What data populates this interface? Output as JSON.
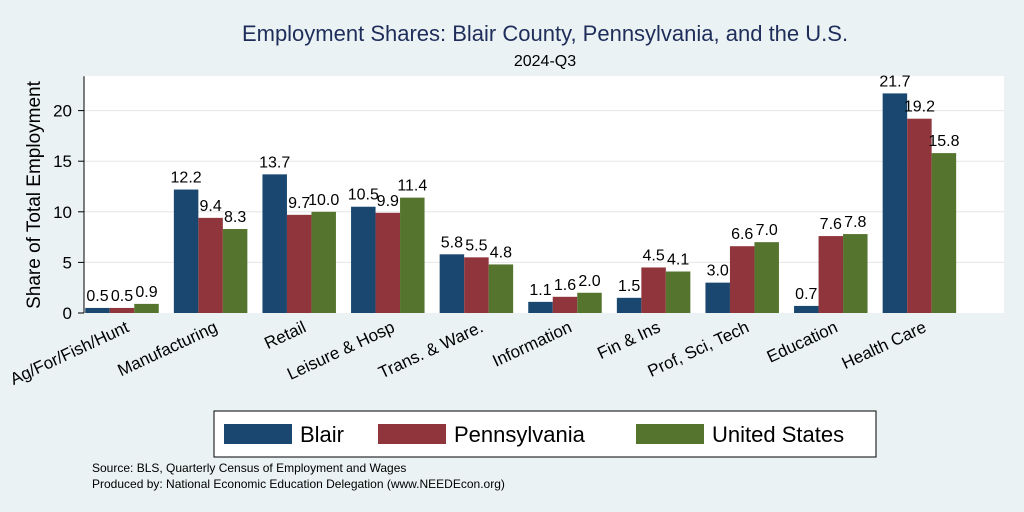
{
  "colors": {
    "background": "#eaf2f3",
    "plot_bg": "#ffffff",
    "title": "#1e2d5a",
    "text": "#000000"
  },
  "chart_data": {
    "type": "bar",
    "title": "Employment Shares: Blair County, Pennsylvania, and the U.S.",
    "subtitle": "2024-Q3",
    "ylabel": "Share of Total Employment",
    "xlabel": "",
    "ylim": [
      0,
      24
    ],
    "yticks": [
      "0",
      "5",
      "10",
      "15",
      "20"
    ],
    "categories": [
      "Ag/For/Fish/Hunt",
      "Manufacturing",
      "Retail",
      "Leisure & Hosp",
      "Trans. & Ware.",
      "Information",
      "Fin & Ins",
      "Prof, Sci, Tech",
      "Education",
      "Health Care"
    ],
    "series": [
      {
        "name": "Blair",
        "color": "#1a476f",
        "values": [
          0.5,
          12.2,
          13.7,
          10.5,
          5.8,
          1.1,
          1.5,
          3.0,
          0.7,
          21.7
        ],
        "labels": [
          "0.5",
          "12.2",
          "13.7",
          "10.5",
          "5.8",
          "1.1",
          "1.5",
          "3.0",
          "0.7",
          "21.7"
        ]
      },
      {
        "name": "Pennsylvania",
        "color": "#90353b",
        "values": [
          0.5,
          9.4,
          9.7,
          9.9,
          5.5,
          1.6,
          4.5,
          6.6,
          7.6,
          19.2
        ],
        "labels": [
          "0.5",
          "9.4",
          "9.7",
          "9.9",
          "5.5",
          "1.6",
          "4.5",
          "6.6",
          "7.6",
          "19.2"
        ]
      },
      {
        "name": "United States",
        "color": "#55752f",
        "values": [
          0.9,
          8.3,
          10.0,
          11.4,
          4.8,
          2.0,
          4.1,
          7.0,
          7.8,
          15.8
        ],
        "labels": [
          "0.9",
          "8.3",
          "10.0",
          "11.4",
          "4.8",
          "2.0",
          "4.1",
          "7.0",
          "7.8",
          "15.8"
        ]
      }
    ],
    "legend_position": "bottom",
    "grid": true,
    "notes": [
      "Source: BLS, Quarterly Census of Employment and Wages",
      "Produced by: National Economic Education Delegation (www.NEEDEcon.org)"
    ]
  }
}
